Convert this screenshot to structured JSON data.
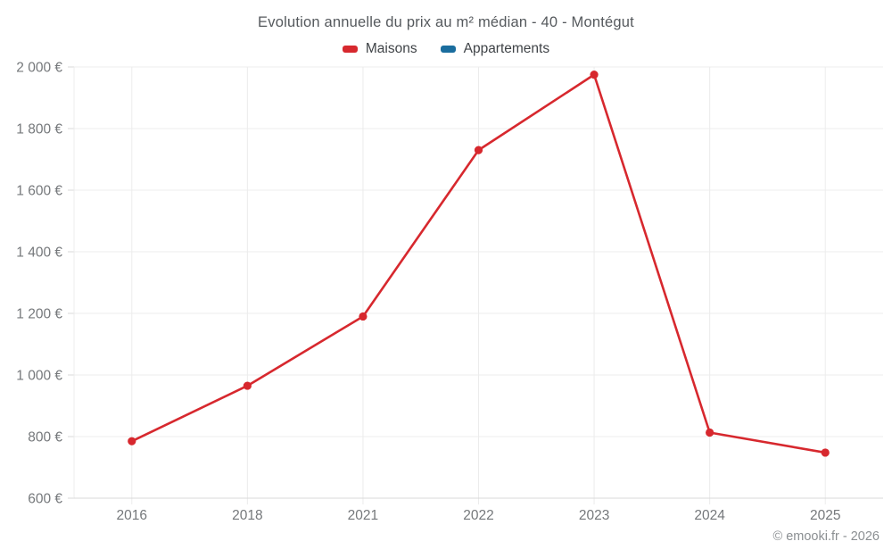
{
  "chart_data": {
    "type": "line",
    "title": "Evolution annuelle du prix au m² médian - 40 - Montégut",
    "categories": [
      "2016",
      "2018",
      "2021",
      "2022",
      "2023",
      "2024",
      "2025"
    ],
    "series": [
      {
        "name": "Maisons",
        "color": "#d7282e",
        "values": [
          785,
          965,
          1190,
          1730,
          1975,
          813,
          748
        ]
      },
      {
        "name": "Appartements",
        "color": "#1a6d9e",
        "values": []
      }
    ],
    "xlabel": "",
    "ylabel": "",
    "ylim": [
      600,
      2000
    ],
    "y_ticks": [
      {
        "value": 600,
        "label": "600 €"
      },
      {
        "value": 800,
        "label": "800 €"
      },
      {
        "value": 1000,
        "label": "1 000 €"
      },
      {
        "value": 1200,
        "label": "1 200 €"
      },
      {
        "value": 1400,
        "label": "1 400 €"
      },
      {
        "value": 1600,
        "label": "1 600 €"
      },
      {
        "value": 1800,
        "label": "1 800 €"
      },
      {
        "value": 2000,
        "label": "2 000 €"
      }
    ],
    "grid": true,
    "legend_position": "top"
  },
  "footer": {
    "copyright": "© emooki.fr - 2026"
  },
  "colors": {
    "grid": "#ececec",
    "axis": "#d9d9d9",
    "tick_label": "#75787b"
  }
}
